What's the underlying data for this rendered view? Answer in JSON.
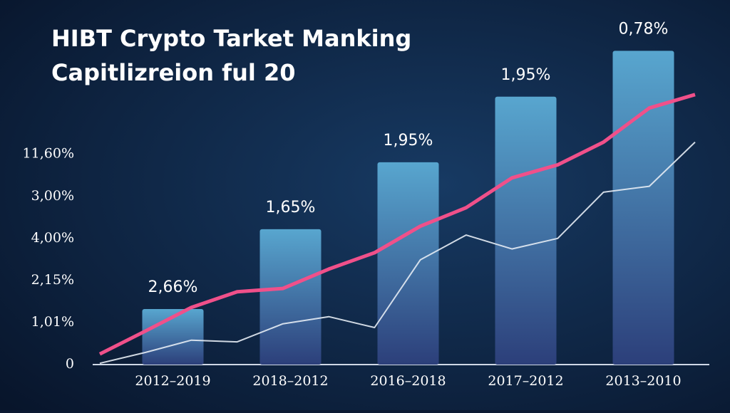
{
  "chart_data": {
    "type": "bar",
    "title": [
      "HIBT Crypto Tarket Manking",
      "Capitlizreion ful 20"
    ],
    "categories": [
      "2012–2019",
      "2018–2012",
      "2016–2018",
      "2017–2012",
      "2013–2010"
    ],
    "values": [
      1.32,
      3.22,
      4.81,
      6.37,
      7.46
    ],
    "annotations": [
      "2,66%",
      "1,65%",
      "1,95%",
      "1,95%",
      "0,78%"
    ],
    "color": "#4a9ac4",
    "lines": [
      {
        "color": "#f0508a",
        "values": [
          0.25,
          0.8,
          1.36,
          1.73,
          1.81,
          2.27,
          2.66,
          3.29,
          3.73,
          4.44,
          4.75,
          5.29,
          6.1,
          6.42
        ]
      },
      {
        "color": "#e6ecf4",
        "values": [
          0.03,
          0.29,
          0.58,
          0.54,
          0.97,
          1.14,
          0.88,
          2.49,
          3.08,
          2.75,
          3.0,
          4.1,
          4.24,
          5.29
        ]
      }
    ],
    "ylim": [
      0,
      8.5
    ],
    "yticks": [
      {
        "value": 0,
        "label": "0"
      },
      {
        "value": 1,
        "label": "1,01%"
      },
      {
        "value": 2,
        "label": "2,15%"
      },
      {
        "value": 3,
        "label": "4,00%"
      },
      {
        "value": 4,
        "label": "3,00%"
      },
      {
        "value": 5,
        "label": "11,60%"
      }
    ]
  }
}
